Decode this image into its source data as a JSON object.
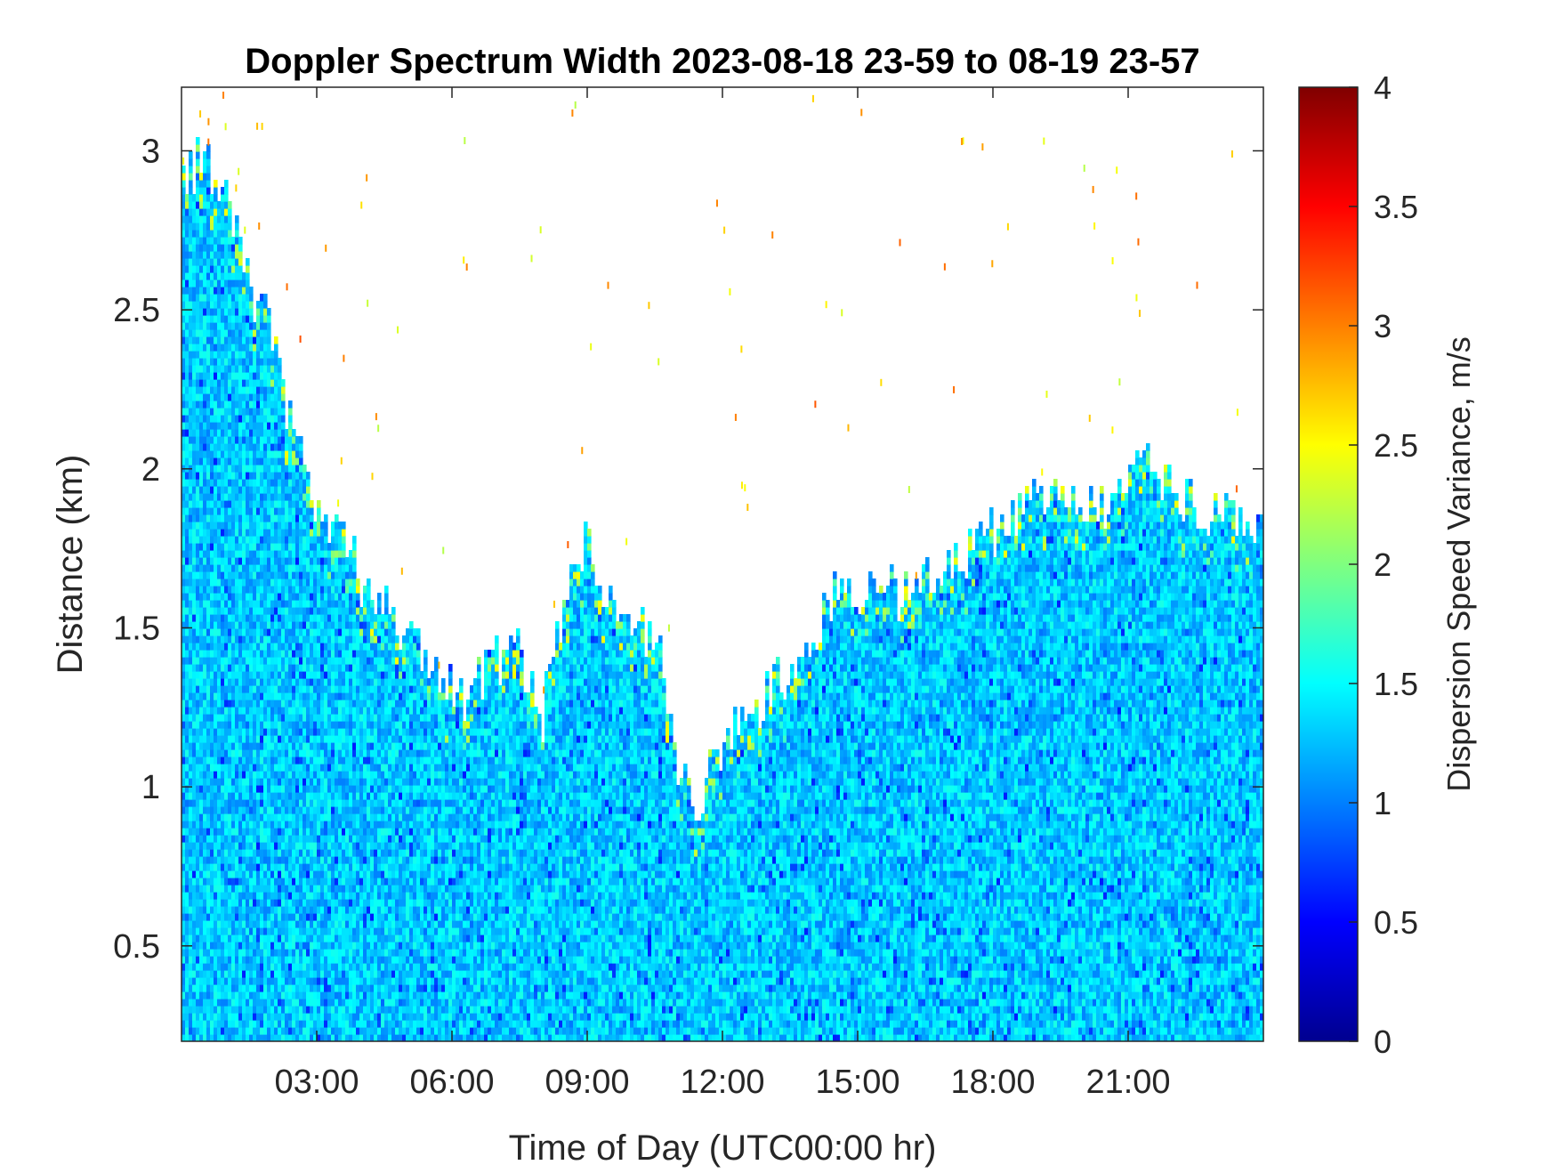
{
  "chart_data": {
    "type": "heatmap",
    "title": "Doppler Spectrum Width 2023-08-18 23-59 to 08-19 23-57",
    "xlabel": "Time of Day (UTC00:00 hr)",
    "ylabel": "Distance (km)",
    "colorbar_label": "Dispersion Speed Variance, m/s",
    "colormap": "jet",
    "x_range_hours": [
      0,
      24
    ],
    "y_range_km": [
      0.2,
      3.2
    ],
    "color_range": [
      0,
      4
    ],
    "x_ticks": [
      {
        "hour": 3,
        "label": "03:00"
      },
      {
        "hour": 6,
        "label": "06:00"
      },
      {
        "hour": 9,
        "label": "09:00"
      },
      {
        "hour": 12,
        "label": "12:00"
      },
      {
        "hour": 15,
        "label": "15:00"
      },
      {
        "hour": 18,
        "label": "18:00"
      },
      {
        "hour": 21,
        "label": "21:00"
      }
    ],
    "y_ticks": [
      {
        "value": 0.5,
        "label": "0.5"
      },
      {
        "value": 1,
        "label": "1"
      },
      {
        "value": 1.5,
        "label": "1.5"
      },
      {
        "value": 2,
        "label": "2"
      },
      {
        "value": 2.5,
        "label": "2.5"
      },
      {
        "value": 3,
        "label": "3"
      }
    ],
    "colorbar_ticks": [
      {
        "value": 0,
        "label": "0"
      },
      {
        "value": 0.5,
        "label": "0.5"
      },
      {
        "value": 1,
        "label": "1"
      },
      {
        "value": 1.5,
        "label": "1.5"
      },
      {
        "value": 2,
        "label": "2"
      },
      {
        "value": 2.5,
        "label": "2.5"
      },
      {
        "value": 3,
        "label": "3"
      },
      {
        "value": 3.5,
        "label": "3.5"
      },
      {
        "value": 4,
        "label": "4"
      }
    ],
    "signal_top_profile": {
      "description_hours": [
        0.0,
        0.5,
        1.0,
        1.5,
        2.0,
        2.5,
        3.0,
        3.5,
        4.0,
        4.5,
        5.0,
        5.5,
        6.0,
        6.5,
        7.0,
        7.5,
        8.0,
        8.5,
        9.0,
        9.5,
        10.0,
        10.5,
        11.0,
        11.5,
        12.0,
        12.5,
        13.0,
        13.5,
        14.0,
        14.5,
        15.0,
        15.5,
        16.0,
        16.5,
        17.0,
        17.5,
        18.0,
        18.5,
        19.0,
        19.5,
        20.0,
        20.5,
        21.0,
        21.5,
        22.0,
        22.5,
        23.0,
        23.5,
        24.0
      ],
      "top_km": [
        2.9,
        3.0,
        2.85,
        2.6,
        2.4,
        2.1,
        1.85,
        1.8,
        1.65,
        1.55,
        1.5,
        1.35,
        1.3,
        1.3,
        1.4,
        1.45,
        1.2,
        1.6,
        1.75,
        1.55,
        1.5,
        1.5,
        1.0,
        0.95,
        1.15,
        1.2,
        1.3,
        1.35,
        1.5,
        1.6,
        1.6,
        1.6,
        1.6,
        1.65,
        1.7,
        1.75,
        1.8,
        1.85,
        1.9,
        1.9,
        1.9,
        1.85,
        1.95,
        2.0,
        1.95,
        1.9,
        1.85,
        1.85,
        1.8
      ]
    },
    "dominant_value_range": [
      1.0,
      1.6
    ],
    "grid": false,
    "legend": "none"
  }
}
